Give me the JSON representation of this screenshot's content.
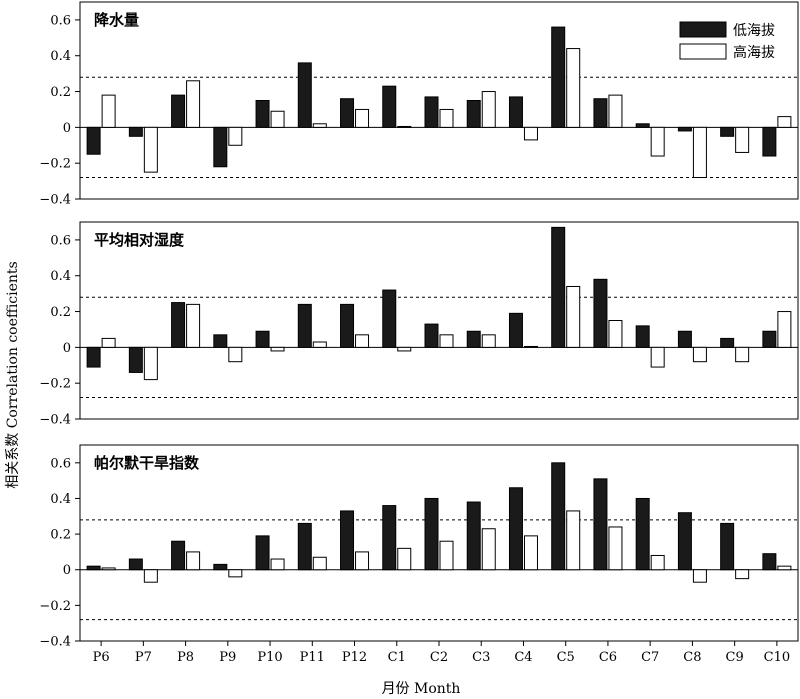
{
  "chart_data": {
    "type": "bar",
    "xlabel": "月份 Month",
    "ylabel": "相关系数 Correlation coefficients",
    "categories": [
      "P6",
      "P7",
      "P8",
      "P9",
      "P10",
      "P11",
      "P12",
      "C1",
      "C2",
      "C3",
      "C4",
      "C5",
      "C6",
      "C7",
      "C8",
      "C9",
      "C10"
    ],
    "legend": {
      "position": "top-right",
      "entries": [
        "低海拔",
        "高海拔"
      ]
    },
    "series_styles": {
      "低海拔": {
        "fill": "#1a1a1a",
        "stroke": "#000000"
      },
      "高海拔": {
        "fill": "#ffffff",
        "stroke": "#000000"
      }
    },
    "ylim": [
      -0.4,
      0.7
    ],
    "yticks": [
      -0.4,
      -0.2,
      0,
      0.2,
      0.4,
      0.6
    ],
    "ytick_labels": [
      "−0.4",
      "−0.2",
      "0",
      "0.2",
      "0.4",
      "0.6"
    ],
    "significance_lines": [
      0.28,
      -0.28
    ],
    "panels": [
      {
        "title": "降水量",
        "series": [
          {
            "name": "低海拔",
            "values": [
              -0.15,
              -0.05,
              0.18,
              -0.22,
              0.15,
              0.36,
              0.16,
              0.23,
              0.17,
              0.15,
              0.17,
              0.56,
              0.16,
              0.02,
              -0.02,
              -0.05,
              -0.16
            ]
          },
          {
            "name": "高海拔",
            "values": [
              0.18,
              -0.25,
              0.26,
              -0.1,
              0.09,
              0.02,
              0.1,
              0.005,
              0.1,
              0.2,
              -0.07,
              0.44,
              0.18,
              -0.16,
              -0.28,
              -0.14,
              0.06
            ]
          }
        ]
      },
      {
        "title": "平均相对湿度",
        "series": [
          {
            "name": "低海拔",
            "values": [
              -0.11,
              -0.14,
              0.25,
              0.07,
              0.09,
              0.24,
              0.24,
              0.32,
              0.13,
              0.09,
              0.19,
              0.67,
              0.38,
              0.12,
              0.09,
              0.05,
              0.09
            ]
          },
          {
            "name": "高海拔",
            "values": [
              0.05,
              -0.18,
              0.24,
              -0.08,
              -0.02,
              0.03,
              0.07,
              -0.02,
              0.07,
              0.07,
              0.005,
              0.34,
              0.15,
              -0.11,
              -0.08,
              -0.08,
              0.2
            ]
          }
        ]
      },
      {
        "title": "帕尔默干旱指数",
        "series": [
          {
            "name": "低海拔",
            "values": [
              0.02,
              0.06,
              0.16,
              0.03,
              0.19,
              0.26,
              0.33,
              0.36,
              0.4,
              0.38,
              0.46,
              0.6,
              0.51,
              0.4,
              0.32,
              0.26,
              0.09
            ]
          },
          {
            "name": "高海拔",
            "values": [
              0.01,
              -0.07,
              0.1,
              -0.04,
              0.06,
              0.07,
              0.1,
              0.12,
              0.16,
              0.23,
              0.19,
              0.33,
              0.24,
              0.08,
              -0.07,
              -0.05,
              0.02
            ]
          }
        ]
      }
    ]
  }
}
